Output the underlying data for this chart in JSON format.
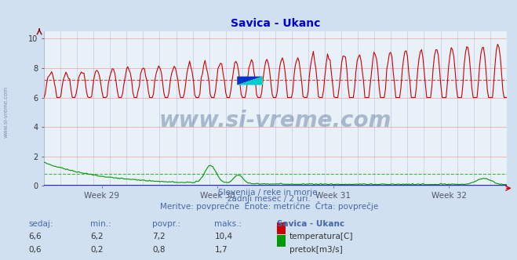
{
  "title": "Savica - Ukanc",
  "title_color": "#0000cc",
  "bg_color": "#d0e0f0",
  "plot_bg_color": "#e8f0f8",
  "grid_color_h": "#ff9999",
  "grid_color_v": "#aaaadd",
  "x_tick_labels": [
    "Week 29",
    "Week 30",
    "Week 31",
    "Week 32"
  ],
  "y_ticks": [
    0,
    2,
    4,
    6,
    8,
    10
  ],
  "ylim": [
    0,
    10.5
  ],
  "temp_color": "#cc0000",
  "flow_color": "#009900",
  "avg_temp": 7.2,
  "avg_flow": 0.8,
  "temp_min": 6.2,
  "temp_max": 10.4,
  "temp_current": 6.6,
  "temp_avg": 7.2,
  "flow_min": 0.2,
  "flow_max": 1.7,
  "flow_current": 0.6,
  "flow_avg": 0.8,
  "subtitle1": "Slovenija / reke in morje.",
  "subtitle2": "zadnji mesec / 2 uri.",
  "subtitle3": "Meritve: povprečne  Enote: metrične  Črta: povprečje",
  "label_color": "#4466aa",
  "watermark_text": "www.si-vreme.com",
  "watermark_color": "#1a3a6a",
  "sidebar_text": "www.si-vreme.com",
  "n_points": 360
}
